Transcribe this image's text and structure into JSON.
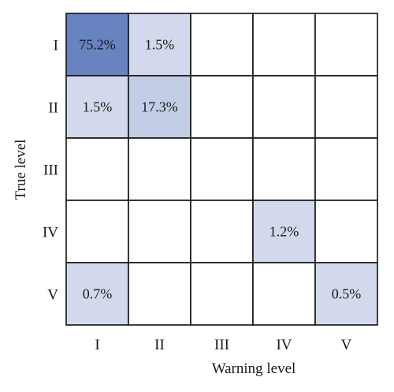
{
  "chart_data": {
    "type": "heatmap",
    "title": "",
    "xlabel": "Warning level",
    "ylabel": "True level",
    "x_categories": [
      "I",
      "II",
      "III",
      "IV",
      "V"
    ],
    "y_categories": [
      "I",
      "II",
      "III",
      "IV",
      "V"
    ],
    "values": [
      [
        75.2,
        1.5,
        null,
        null,
        null
      ],
      [
        1.5,
        17.3,
        null,
        null,
        null
      ],
      [
        null,
        null,
        null,
        null,
        null
      ],
      [
        null,
        null,
        null,
        1.2,
        null
      ],
      [
        0.7,
        null,
        null,
        null,
        0.5
      ]
    ],
    "labels": [
      [
        "75.2%",
        "1.5%",
        "",
        "",
        ""
      ],
      [
        "1.5%",
        "17.3%",
        "",
        "",
        ""
      ],
      [
        "",
        "",
        "",
        "",
        ""
      ],
      [
        "",
        "",
        "",
        "1.2%",
        ""
      ],
      [
        "0.7%",
        "",
        "",
        "",
        "0.5%"
      ]
    ],
    "colors": {
      "low": "#d3d9ec",
      "mid": "#a7b6dc",
      "high": "#6783c0",
      "empty": "#ffffff",
      "grid": "#111111"
    }
  }
}
